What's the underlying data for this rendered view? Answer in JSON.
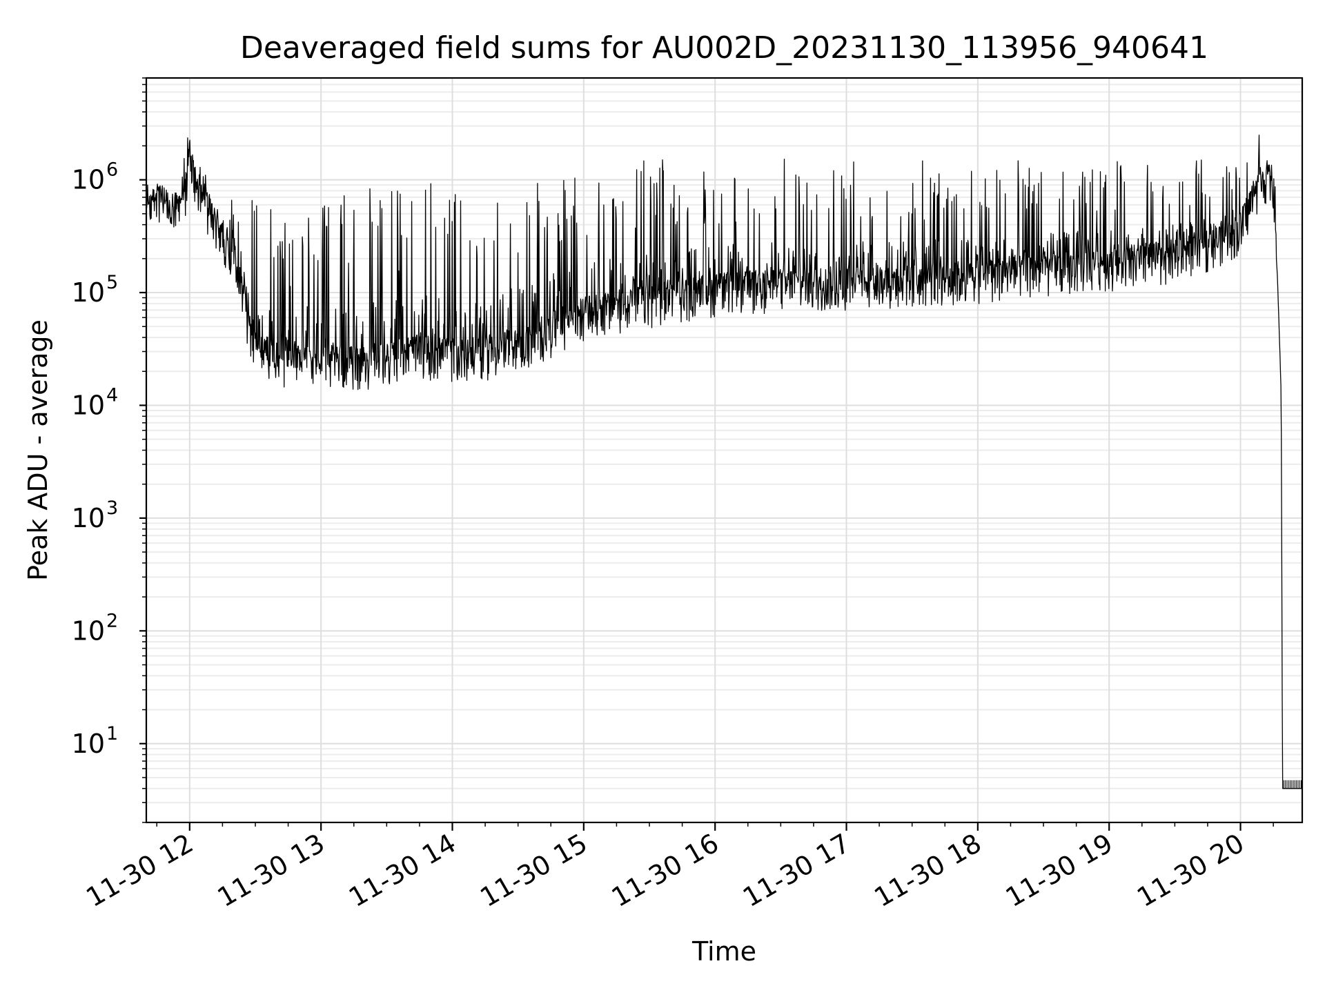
{
  "chart_data": {
    "type": "line",
    "title": "Deaveraged field sums for AU002D_20231130_113956_940641",
    "xlabel": "Time",
    "ylabel": "Peak ADU - average",
    "y_scale": "log",
    "ylim": [
      2,
      8000000
    ],
    "y_ticks": [
      {
        "base": "10",
        "exp": "1",
        "value": 10
      },
      {
        "base": "10",
        "exp": "2",
        "value": 100
      },
      {
        "base": "10",
        "exp": "3",
        "value": 1000
      },
      {
        "base": "10",
        "exp": "4",
        "value": 10000
      },
      {
        "base": "10",
        "exp": "5",
        "value": 100000
      },
      {
        "base": "10",
        "exp": "6",
        "value": 1000000
      }
    ],
    "x_range_hours": [
      11.67,
      20.47
    ],
    "x_ticks": [
      {
        "label": "11-30 12",
        "hour": 12
      },
      {
        "label": "11-30 13",
        "hour": 13
      },
      {
        "label": "11-30 14",
        "hour": 14
      },
      {
        "label": "11-30 15",
        "hour": 15
      },
      {
        "label": "11-30 16",
        "hour": 16
      },
      {
        "label": "11-30 17",
        "hour": 17
      },
      {
        "label": "11-30 18",
        "hour": 18
      },
      {
        "label": "11-30 19",
        "hour": 19
      },
      {
        "label": "11-30 20",
        "hour": 20
      }
    ],
    "grid": true,
    "legend": "none",
    "line_color": "#000000",
    "series": [
      {
        "x_hours": [
          11.67,
          11.75,
          11.83,
          11.92,
          11.98,
          12.0,
          12.05,
          12.1,
          12.15,
          12.2,
          12.25,
          12.3,
          12.35,
          12.4,
          12.45,
          12.5,
          12.6,
          12.7,
          12.8,
          12.9,
          13.0,
          13.1,
          13.2,
          13.3,
          13.35,
          13.4,
          13.5,
          13.6,
          13.7,
          13.8,
          13.9,
          14.0,
          14.1,
          14.2,
          14.3,
          14.4,
          14.5,
          14.6,
          14.7,
          14.8,
          14.9,
          15.0,
          15.25,
          15.5,
          15.75,
          16.0,
          16.25,
          16.5,
          16.75,
          17.0,
          17.25,
          17.5,
          17.75,
          18.0,
          18.25,
          18.5,
          18.75,
          19.0,
          19.25,
          19.5,
          19.75,
          20.0,
          20.05,
          20.1,
          20.15,
          20.2,
          20.25,
          20.28,
          20.3,
          20.31,
          20.32,
          20.47
        ],
        "y": [
          600000,
          650000,
          550000,
          500000,
          900000,
          1800000,
          900000,
          700000,
          500000,
          400000,
          300000,
          250000,
          200000,
          100000,
          50000,
          30000,
          25000,
          20000,
          22000,
          24000,
          25000,
          24000,
          23000,
          22000,
          20000,
          24000,
          25000,
          27000,
          28000,
          28000,
          27000,
          26000,
          26000,
          27000,
          28000,
          30000,
          32000,
          35000,
          40000,
          48000,
          55000,
          62000,
          70000,
          80000,
          90000,
          100000,
          105000,
          110000,
          112000,
          115000,
          118000,
          120000,
          125000,
          130000,
          140000,
          150000,
          160000,
          170000,
          180000,
          200000,
          250000,
          350000,
          500000,
          700000,
          900000,
          1000000,
          900000,
          150000,
          30000,
          12000,
          4,
          4
        ],
        "envelope_high": [
          700000,
          750000,
          700000,
          800000,
          2500000,
          4000000,
          1500000,
          1500000,
          1200000,
          900000,
          700000,
          600000,
          1200000,
          1000000,
          800000,
          700000,
          600000,
          500000,
          600000,
          700000,
          700000,
          800000,
          700000,
          800000,
          800000,
          900000,
          900000,
          900000,
          1000000,
          1000000,
          1000000,
          1000000,
          1100000,
          1100000,
          1100000,
          1200000,
          1300000,
          1300000,
          1300000,
          1400000,
          1400000,
          1400000,
          1500000,
          1500000,
          1600000,
          1600000,
          1600000,
          1600000,
          1500000,
          1500000,
          1500000,
          1500000,
          1500000,
          1500000,
          1500000,
          1500000,
          1500000,
          1500000,
          1500000,
          1500000,
          1500000,
          1500000,
          1600000,
          1700000,
          3300000,
          1500000,
          1200000,
          600000,
          70000,
          250,
          4,
          4
        ]
      }
    ]
  }
}
